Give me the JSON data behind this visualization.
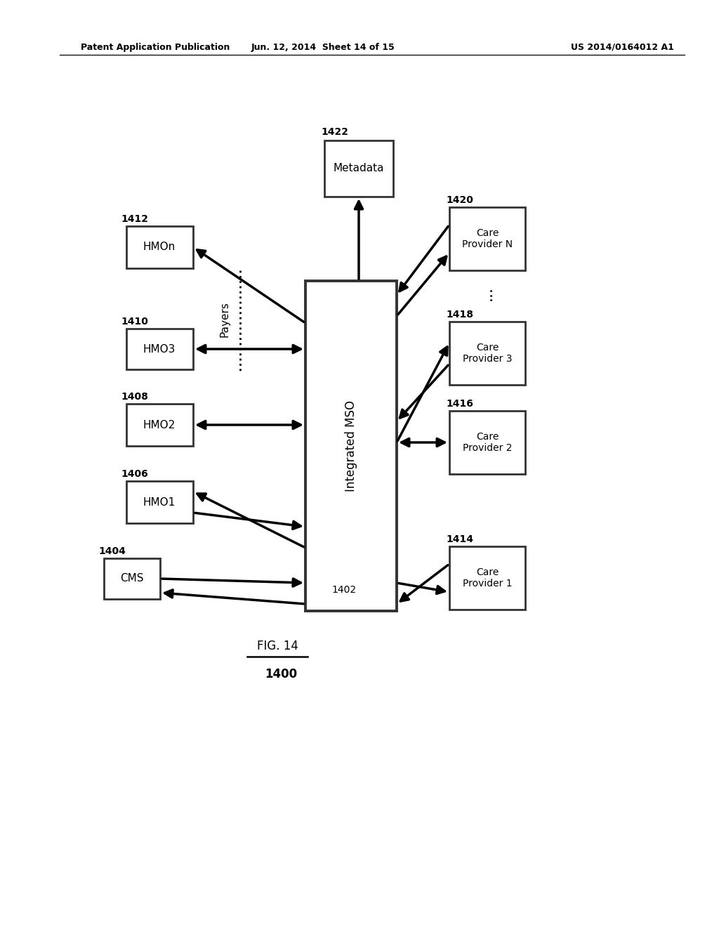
{
  "bg_color": "#ffffff",
  "header_left": "Patent Application Publication",
  "header_mid": "Jun. 12, 2014  Sheet 14 of 15",
  "header_right": "US 2014/0164012 A1",
  "fig_label": "FIG. 14",
  "fig_num": "1400",
  "center_label": "Integrated MSO",
  "center_num": "1402",
  "metadata_label": "Metadata",
  "metadata_num": "1422",
  "payers_label": "Payers",
  "left_boxes": [
    {
      "label": "CMS",
      "num": "1404"
    },
    {
      "label": "HMO1",
      "num": "1406"
    },
    {
      "label": "HMO2",
      "num": "1408"
    },
    {
      "label": "HMO3",
      "num": "1410"
    },
    {
      "label": "HMOn",
      "num": "1412"
    }
  ],
  "right_boxes": [
    {
      "label": "Care\nProvider 1",
      "num": "1414"
    },
    {
      "label": "Care\nProvider 2",
      "num": "1416"
    },
    {
      "label": "Care\nProvider 3",
      "num": "1418"
    },
    {
      "label": "Care\nProvider N",
      "num": "1420"
    }
  ]
}
